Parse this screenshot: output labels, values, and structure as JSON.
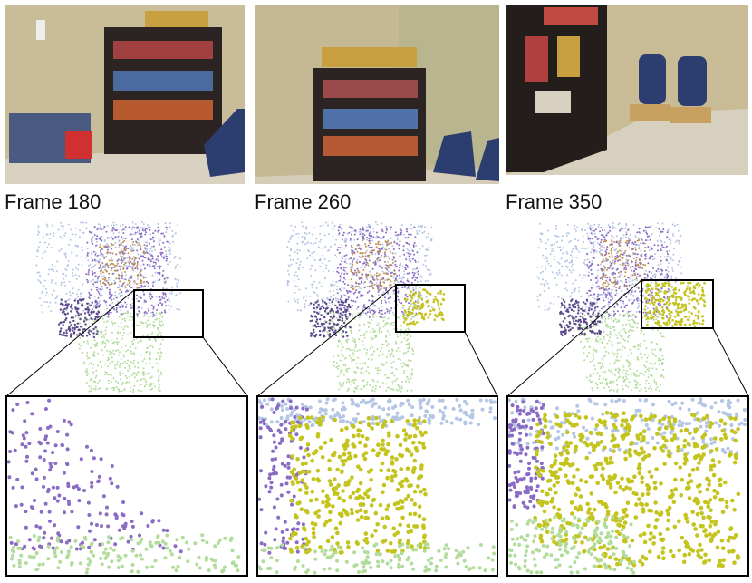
{
  "frames": [
    {
      "label": "Frame 180"
    },
    {
      "label": "Frame 260"
    },
    {
      "label": "Frame 350"
    }
  ]
}
